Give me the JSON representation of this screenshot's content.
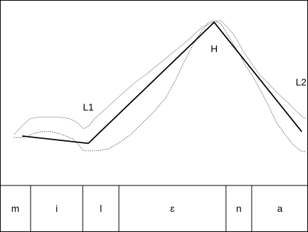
{
  "chart_data": {
    "type": "line",
    "title": "",
    "xlabel": "",
    "ylabel": "",
    "xlim": [
      0,
      443
    ],
    "ylim": [
      0,
      100
    ],
    "grid": false,
    "segments": [
      {
        "label": "m",
        "start": 0,
        "end": 44
      },
      {
        "label": "i",
        "start": 44,
        "end": 119
      },
      {
        "label": "l",
        "start": 119,
        "end": 171
      },
      {
        "label": "ɛ",
        "start": 171,
        "end": 325
      },
      {
        "label": "n",
        "start": 325,
        "end": 362
      },
      {
        "label": "a",
        "start": 362,
        "end": 443
      }
    ],
    "annotations": [
      {
        "text": "L1",
        "x": 127,
        "y": 41
      },
      {
        "text": "H",
        "x": 308,
        "y": 81
      },
      {
        "text": "L2",
        "x": 434,
        "y": 58
      }
    ],
    "series": [
      {
        "style": "solid-thick",
        "x": [
          32,
          127,
          308,
          434
        ],
        "y": [
          21,
          16,
          99,
          24
        ]
      },
      {
        "style": "light-gray",
        "x": [
          20,
          28,
          36,
          44,
          56,
          70,
          85,
          100,
          112,
          120,
          128,
          136,
          148,
          162,
          178,
          195,
          212,
          230,
          248,
          266,
          280,
          292,
          302,
          310,
          318,
          326,
          334,
          342,
          350,
          360,
          372,
          386,
          400,
          414,
          426,
          436,
          440
        ],
        "y": [
          22,
          26,
          30,
          33,
          34,
          34,
          34,
          33,
          30,
          26,
          28,
          33,
          38,
          44,
          51,
          58,
          64,
          71,
          78,
          85,
          91,
          96,
          98,
          100,
          100,
          96,
          92,
          86,
          79,
          72,
          64,
          57,
          50,
          44,
          38,
          34,
          33
        ]
      },
      {
        "style": "dotted",
        "x": [
          20,
          30,
          40,
          50,
          60,
          75,
          90,
          105,
          115,
          120,
          128,
          140,
          155,
          170,
          188,
          205,
          222,
          238,
          252,
          265,
          278,
          290,
          300,
          308,
          318,
          328,
          338,
          346,
          352,
          362,
          374,
          386,
          398,
          410,
          422,
          432,
          440
        ],
        "y": [
          20,
          20,
          21,
          23,
          24,
          24,
          22,
          19,
          14,
          11,
          11,
          11,
          12,
          16,
          22,
          30,
          38,
          47,
          59,
          72,
          84,
          93,
          99,
          100,
          98,
          90,
          82,
          76,
          70,
          63,
          53,
          42,
          30,
          22,
          15,
          11,
          10
        ]
      }
    ]
  }
}
